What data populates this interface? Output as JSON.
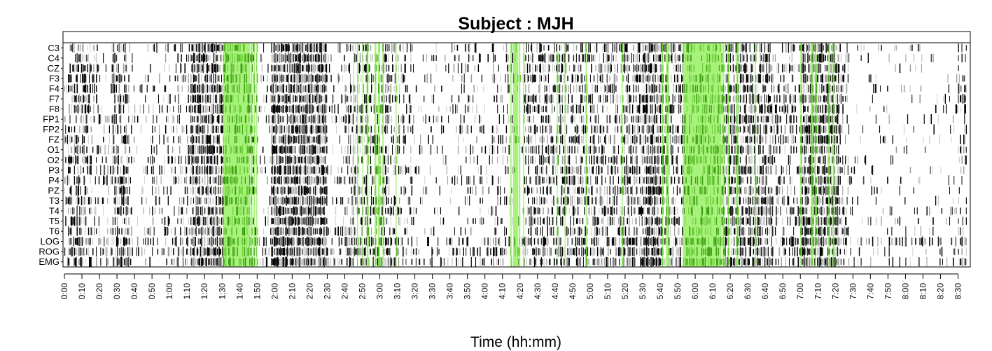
{
  "chart_data": {
    "type": "heatmap",
    "title": "Subject : MJH",
    "xlabel": "Time (hh:mm)",
    "ylabel": "",
    "xlim_minutes": [
      0,
      515
    ],
    "channels": [
      "C3",
      "C4",
      "CZ",
      "F3",
      "F4",
      "F7",
      "F8",
      "FP1",
      "FP2",
      "FZ",
      "O1",
      "O2",
      "P3",
      "P4",
      "PZ",
      "T3",
      "T4",
      "T5",
      "T6",
      "LOG",
      "ROG",
      "EMG"
    ],
    "x_ticks": [
      "0:00",
      "0:10",
      "0:20",
      "0:30",
      "0:40",
      "0:50",
      "1:00",
      "1:10",
      "1:20",
      "1:30",
      "1:40",
      "1:50",
      "2:00",
      "2:10",
      "2:20",
      "2:30",
      "2:40",
      "2:50",
      "3:00",
      "3:10",
      "3:20",
      "3:30",
      "3:40",
      "3:50",
      "4:00",
      "4:10",
      "4:20",
      "4:30",
      "4:40",
      "4:50",
      "5:00",
      "5:10",
      "5:20",
      "5:30",
      "5:40",
      "5:50",
      "6:00",
      "6:10",
      "6:20",
      "6:30",
      "6:40",
      "6:50",
      "7:00",
      "7:10",
      "7:20",
      "7:30",
      "7:40",
      "7:50",
      "8:00",
      "8:10",
      "8:20",
      "8:30"
    ],
    "highlight_intervals_minutes": [
      [
        90.5,
        106.0
      ],
      [
        106.3,
        107.3
      ],
      [
        108.0,
        108.8
      ],
      [
        109.5,
        110.1
      ],
      [
        164.8,
        165.3
      ],
      [
        167.0,
        167.6
      ],
      [
        170.0,
        170.4
      ],
      [
        172.5,
        173.5
      ],
      [
        177.0,
        178.0
      ],
      [
        179.0,
        180.0
      ],
      [
        181.5,
        182.2
      ],
      [
        189.0,
        189.6
      ],
      [
        254.5,
        255.2
      ],
      [
        256.0,
        259.0
      ],
      [
        259.3,
        260.2
      ],
      [
        261.8,
        262.4
      ],
      [
        281.0,
        281.5
      ],
      [
        285.5,
        286.0
      ],
      [
        297.5,
        298.1
      ],
      [
        318.0,
        318.6
      ],
      [
        341.0,
        341.6
      ],
      [
        343.3,
        345.0
      ],
      [
        353.0,
        375.0
      ],
      [
        375.5,
        376.5
      ],
      [
        378.5,
        379.3
      ],
      [
        383.5,
        384.5
      ],
      [
        394.0,
        394.6
      ],
      [
        420.0,
        420.8
      ],
      [
        426.0,
        427.5
      ],
      [
        428.3,
        429.0
      ],
      [
        436.0,
        436.8
      ],
      [
        438.5,
        439.2
      ]
    ],
    "activity_profile": [
      {
        "start": 0,
        "end": 2,
        "density": 0.15
      },
      {
        "start": 2,
        "end": 16,
        "density": 0.42
      },
      {
        "start": 16,
        "end": 27,
        "density": 0.2
      },
      {
        "start": 27,
        "end": 37,
        "density": 0.5
      },
      {
        "start": 37,
        "end": 50,
        "density": 0.12
      },
      {
        "start": 50,
        "end": 62,
        "density": 0.2
      },
      {
        "start": 62,
        "end": 72,
        "density": 0.22
      },
      {
        "start": 72,
        "end": 91,
        "density": 0.72
      },
      {
        "start": 91,
        "end": 110,
        "density": 0.38
      },
      {
        "start": 110,
        "end": 118,
        "density": 0.15
      },
      {
        "start": 118,
        "end": 150,
        "density": 0.86
      },
      {
        "start": 150,
        "end": 160,
        "density": 0.12
      },
      {
        "start": 160,
        "end": 186,
        "density": 0.38
      },
      {
        "start": 186,
        "end": 198,
        "density": 0.28
      },
      {
        "start": 198,
        "end": 224,
        "density": 0.1
      },
      {
        "start": 224,
        "end": 232,
        "density": 0.18
      },
      {
        "start": 232,
        "end": 244,
        "density": 0.12
      },
      {
        "start": 244,
        "end": 256,
        "density": 0.22
      },
      {
        "start": 256,
        "end": 262,
        "density": 0.1
      },
      {
        "start": 262,
        "end": 282,
        "density": 0.42
      },
      {
        "start": 282,
        "end": 300,
        "density": 0.4
      },
      {
        "start": 300,
        "end": 318,
        "density": 0.36
      },
      {
        "start": 318,
        "end": 330,
        "density": 0.52
      },
      {
        "start": 330,
        "end": 342,
        "density": 0.75
      },
      {
        "start": 342,
        "end": 352,
        "density": 0.38
      },
      {
        "start": 352,
        "end": 376,
        "density": 0.35
      },
      {
        "start": 376,
        "end": 390,
        "density": 0.62
      },
      {
        "start": 390,
        "end": 404,
        "density": 0.55
      },
      {
        "start": 404,
        "end": 420,
        "density": 0.3
      },
      {
        "start": 420,
        "end": 442,
        "density": 0.72
      },
      {
        "start": 442,
        "end": 448,
        "density": 0.3
      },
      {
        "start": 448,
        "end": 510,
        "density": 0.07
      },
      {
        "start": 510,
        "end": 515,
        "density": 0.35
      }
    ],
    "colors": {
      "background": "#ffffff",
      "highlight": "#a6f27a",
      "highlight_dark": "#3a9a10",
      "marks": "#000000",
      "marks_gray": "#9a9a9a",
      "marks_light": "#cfcfcf"
    },
    "grid": false,
    "legend": "none"
  }
}
